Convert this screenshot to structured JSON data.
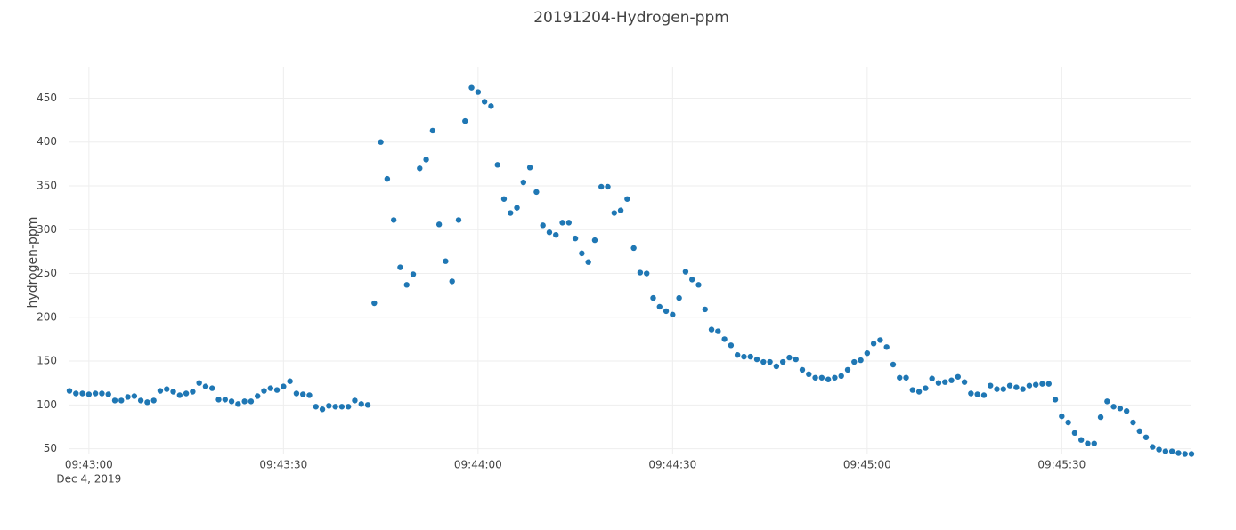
{
  "chart_data": {
    "type": "scatter",
    "title": "20191204-Hydrogen-ppm",
    "y_label": "hydrogen-ppm",
    "color": "#1f77b4",
    "grid": true,
    "xtick_date": "Dec 4, 2019",
    "xlim": [
      "2019-12-04 09:42:57",
      "2019-12-04 09:45:50"
    ],
    "xticks": [
      {
        "value": "2019-12-04 09:43:00",
        "label": "09:43:00"
      },
      {
        "value": "2019-12-04 09:43:30",
        "label": "09:43:30"
      },
      {
        "value": "2019-12-04 09:44:00",
        "label": "09:44:00"
      },
      {
        "value": "2019-12-04 09:44:30",
        "label": "09:44:30"
      },
      {
        "value": "2019-12-04 09:45:00",
        "label": "09:45:00"
      },
      {
        "value": "2019-12-04 09:45:30",
        "label": "09:45:30"
      }
    ],
    "ylim": [
      44.5,
      486
    ],
    "yticks": [
      50,
      100,
      150,
      200,
      250,
      300,
      350,
      400,
      450
    ],
    "x": [
      "2019-12-04 09:42:57",
      "2019-12-04 09:42:58",
      "2019-12-04 09:42:59",
      "2019-12-04 09:43:00",
      "2019-12-04 09:43:01",
      "2019-12-04 09:43:02",
      "2019-12-04 09:43:03",
      "2019-12-04 09:43:04",
      "2019-12-04 09:43:05",
      "2019-12-04 09:43:06",
      "2019-12-04 09:43:07",
      "2019-12-04 09:43:08",
      "2019-12-04 09:43:09",
      "2019-12-04 09:43:10",
      "2019-12-04 09:43:11",
      "2019-12-04 09:43:12",
      "2019-12-04 09:43:13",
      "2019-12-04 09:43:14",
      "2019-12-04 09:43:15",
      "2019-12-04 09:43:16",
      "2019-12-04 09:43:17",
      "2019-12-04 09:43:18",
      "2019-12-04 09:43:19",
      "2019-12-04 09:43:20",
      "2019-12-04 09:43:21",
      "2019-12-04 09:43:22",
      "2019-12-04 09:43:23",
      "2019-12-04 09:43:24",
      "2019-12-04 09:43:25",
      "2019-12-04 09:43:26",
      "2019-12-04 09:43:27",
      "2019-12-04 09:43:28",
      "2019-12-04 09:43:29",
      "2019-12-04 09:43:30",
      "2019-12-04 09:43:31",
      "2019-12-04 09:43:32",
      "2019-12-04 09:43:33",
      "2019-12-04 09:43:34",
      "2019-12-04 09:43:35",
      "2019-12-04 09:43:36",
      "2019-12-04 09:43:37",
      "2019-12-04 09:43:38",
      "2019-12-04 09:43:39",
      "2019-12-04 09:43:40",
      "2019-12-04 09:43:41",
      "2019-12-04 09:43:42",
      "2019-12-04 09:43:43",
      "2019-12-04 09:43:44",
      "2019-12-04 09:43:45",
      "2019-12-04 09:43:46",
      "2019-12-04 09:43:47",
      "2019-12-04 09:43:48",
      "2019-12-04 09:43:49",
      "2019-12-04 09:43:50",
      "2019-12-04 09:43:51",
      "2019-12-04 09:43:52",
      "2019-12-04 09:43:53",
      "2019-12-04 09:43:54",
      "2019-12-04 09:43:55",
      "2019-12-04 09:43:56",
      "2019-12-04 09:43:57",
      "2019-12-04 09:43:58",
      "2019-12-04 09:43:59",
      "2019-12-04 09:44:00",
      "2019-12-04 09:44:01",
      "2019-12-04 09:44:02",
      "2019-12-04 09:44:03",
      "2019-12-04 09:44:04",
      "2019-12-04 09:44:05",
      "2019-12-04 09:44:06",
      "2019-12-04 09:44:07",
      "2019-12-04 09:44:08",
      "2019-12-04 09:44:09",
      "2019-12-04 09:44:10",
      "2019-12-04 09:44:11",
      "2019-12-04 09:44:12",
      "2019-12-04 09:44:13",
      "2019-12-04 09:44:14",
      "2019-12-04 09:44:15",
      "2019-12-04 09:44:16",
      "2019-12-04 09:44:17",
      "2019-12-04 09:44:18",
      "2019-12-04 09:44:19",
      "2019-12-04 09:44:20",
      "2019-12-04 09:44:21",
      "2019-12-04 09:44:22",
      "2019-12-04 09:44:23",
      "2019-12-04 09:44:24",
      "2019-12-04 09:44:25",
      "2019-12-04 09:44:26",
      "2019-12-04 09:44:27",
      "2019-12-04 09:44:28",
      "2019-12-04 09:44:29",
      "2019-12-04 09:44:30",
      "2019-12-04 09:44:31",
      "2019-12-04 09:44:32",
      "2019-12-04 09:44:33",
      "2019-12-04 09:44:34",
      "2019-12-04 09:44:35",
      "2019-12-04 09:44:36",
      "2019-12-04 09:44:37",
      "2019-12-04 09:44:38",
      "2019-12-04 09:44:39",
      "2019-12-04 09:44:40",
      "2019-12-04 09:44:41",
      "2019-12-04 09:44:42",
      "2019-12-04 09:44:43",
      "2019-12-04 09:44:44",
      "2019-12-04 09:44:45",
      "2019-12-04 09:44:46",
      "2019-12-04 09:44:47",
      "2019-12-04 09:44:48",
      "2019-12-04 09:44:49",
      "2019-12-04 09:44:50",
      "2019-12-04 09:44:51",
      "2019-12-04 09:44:52",
      "2019-12-04 09:44:53",
      "2019-12-04 09:44:54",
      "2019-12-04 09:44:55",
      "2019-12-04 09:44:56",
      "2019-12-04 09:44:57",
      "2019-12-04 09:44:58",
      "2019-12-04 09:44:59",
      "2019-12-04 09:45:00",
      "2019-12-04 09:45:01",
      "2019-12-04 09:45:02",
      "2019-12-04 09:45:03",
      "2019-12-04 09:45:04",
      "2019-12-04 09:45:05",
      "2019-12-04 09:45:06",
      "2019-12-04 09:45:07",
      "2019-12-04 09:45:08",
      "2019-12-04 09:45:09",
      "2019-12-04 09:45:10",
      "2019-12-04 09:45:11",
      "2019-12-04 09:45:12",
      "2019-12-04 09:45:13",
      "2019-12-04 09:45:14",
      "2019-12-04 09:45:15",
      "2019-12-04 09:45:16",
      "2019-12-04 09:45:17",
      "2019-12-04 09:45:18",
      "2019-12-04 09:45:19",
      "2019-12-04 09:45:20",
      "2019-12-04 09:45:21",
      "2019-12-04 09:45:22",
      "2019-12-04 09:45:23",
      "2019-12-04 09:45:24",
      "2019-12-04 09:45:25",
      "2019-12-04 09:45:26",
      "2019-12-04 09:45:27",
      "2019-12-04 09:45:28",
      "2019-12-04 09:45:29",
      "2019-12-04 09:45:30",
      "2019-12-04 09:45:31",
      "2019-12-04 09:45:32",
      "2019-12-04 09:45:33",
      "2019-12-04 09:45:34",
      "2019-12-04 09:45:35",
      "2019-12-04 09:45:36",
      "2019-12-04 09:45:37",
      "2019-12-04 09:45:38",
      "2019-12-04 09:45:39",
      "2019-12-04 09:45:40",
      "2019-12-04 09:45:41",
      "2019-12-04 09:45:42",
      "2019-12-04 09:45:43",
      "2019-12-04 09:45:44",
      "2019-12-04 09:45:45",
      "2019-12-04 09:45:46",
      "2019-12-04 09:45:47",
      "2019-12-04 09:45:48",
      "2019-12-04 09:45:49",
      "2019-12-04 09:45:50"
    ],
    "values": [
      116,
      113,
      113,
      112,
      113,
      113,
      112,
      105,
      105,
      109,
      110,
      105,
      103,
      105,
      116,
      118,
      115,
      111,
      113,
      115,
      125,
      121,
      119,
      106,
      106,
      104,
      101,
      104,
      104,
      110,
      116,
      119,
      117,
      121,
      127,
      113,
      112,
      111,
      98,
      95,
      99,
      98,
      98,
      98,
      105,
      101,
      100,
      216,
      400,
      358,
      311,
      257,
      237,
      249,
      370,
      380,
      413,
      306,
      264,
      241,
      311,
      424,
      462,
      457,
      446,
      441,
      374,
      335,
      319,
      325,
      354,
      371,
      343,
      305,
      297,
      294,
      308,
      308,
      290,
      273,
      263,
      288,
      349,
      349,
      319,
      322,
      335,
      279,
      251,
      250,
      222,
      212,
      207,
      203,
      222,
      252,
      243,
      237,
      209,
      186,
      184,
      175,
      168,
      157,
      155,
      155,
      152,
      149,
      149,
      144,
      149,
      154,
      152,
      140,
      135,
      131,
      131,
      129,
      131,
      133,
      140,
      149,
      151,
      159,
      170,
      174,
      166,
      146,
      131,
      131,
      117,
      115,
      119,
      130,
      125,
      126,
      128,
      132,
      126,
      113,
      112,
      111,
      122,
      118,
      118,
      122,
      120,
      118,
      122,
      123,
      124,
      124,
      106,
      87,
      80,
      68,
      60,
      56,
      56,
      86,
      104,
      98,
      96,
      93,
      80,
      70,
      63,
      52,
      49,
      47,
      47,
      45,
      44,
      44
    ]
  }
}
